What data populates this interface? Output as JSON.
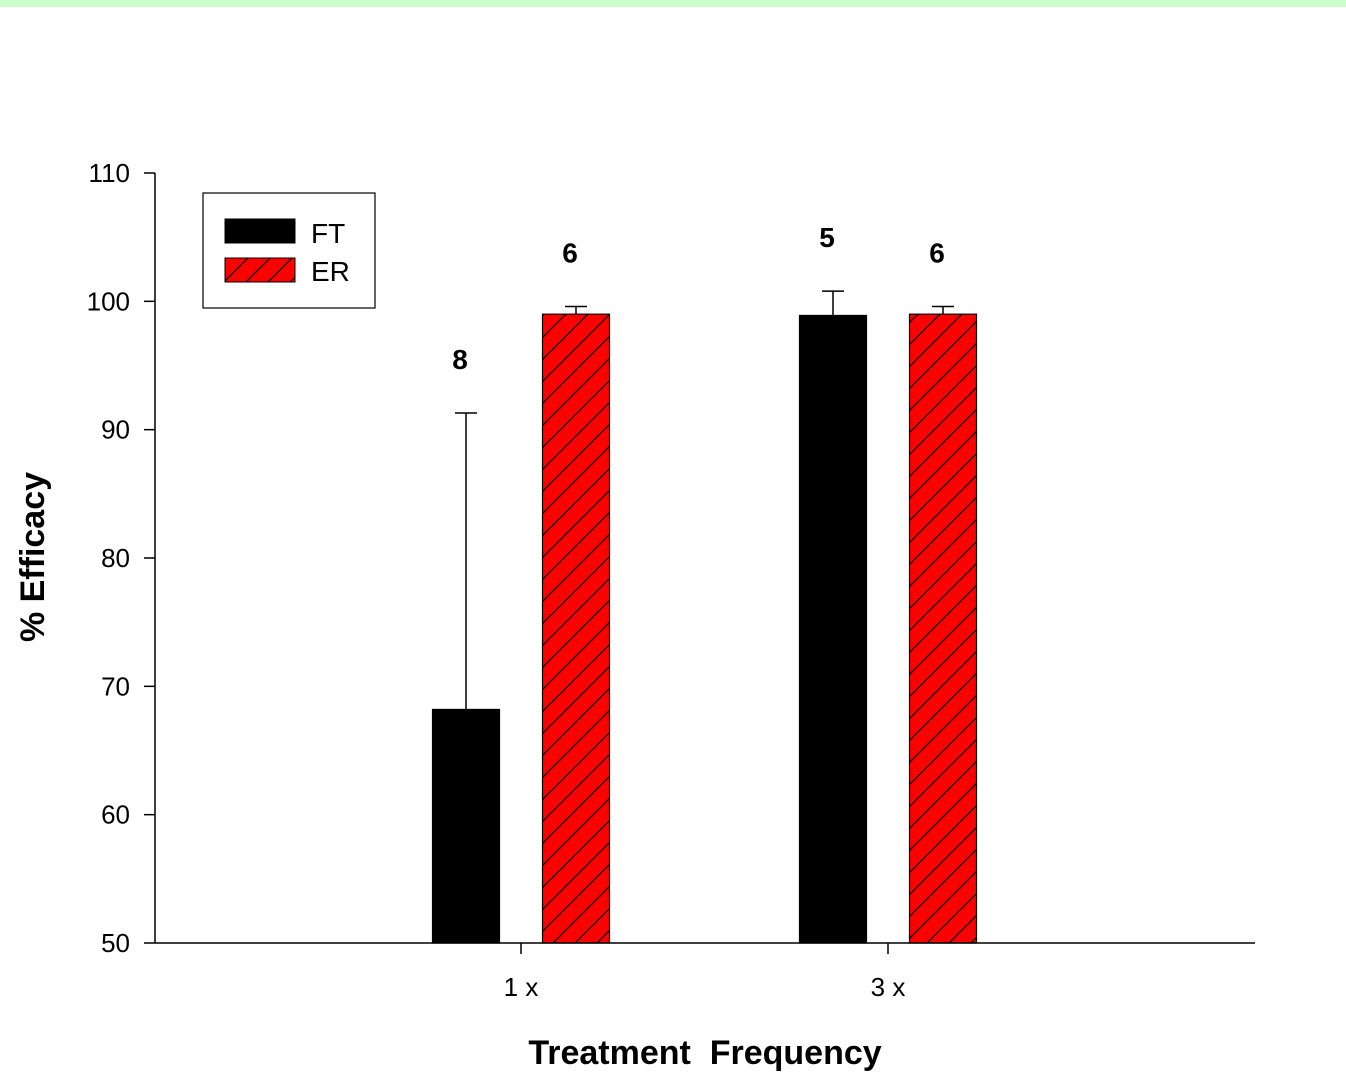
{
  "chart_data": {
    "type": "bar",
    "xlabel": "Treatment  Frequency",
    "ylabel": "% Efficacy",
    "ylim": [
      50,
      110
    ],
    "yticks": [
      50,
      60,
      70,
      80,
      90,
      100,
      110
    ],
    "categories": [
      "1 x",
      "3 x"
    ],
    "series": [
      {
        "name": "FT",
        "color": "#000000",
        "pattern": "solid",
        "values": [
          68.2,
          98.9
        ],
        "error_plus": [
          23.1,
          1.9
        ],
        "n_labels": [
          "8",
          "5"
        ]
      },
      {
        "name": "ER",
        "color": "#ff0000",
        "pattern": "diagonal-hatch",
        "values": [
          99.0,
          99.0
        ],
        "error_plus": [
          0.6,
          0.6
        ],
        "n_labels": [
          "6",
          "6"
        ]
      }
    ],
    "legend_position": "top-left",
    "grid": false
  }
}
